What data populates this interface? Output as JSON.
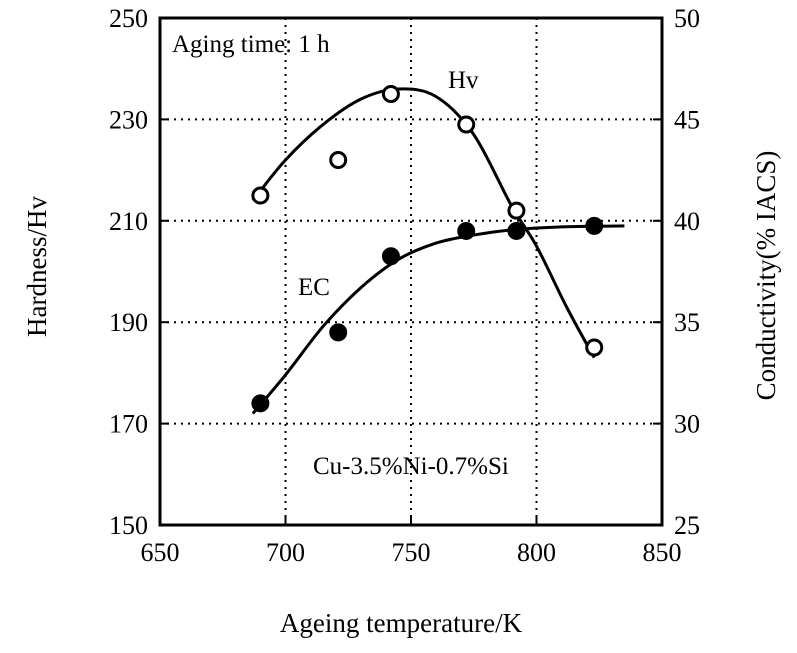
{
  "chart_data": {
    "type": "scatter",
    "xlabel": "Ageing temperature/K",
    "ylabel_left": "Hardness/Hv",
    "ylabel_right": "Conductivity(% IACS)",
    "xlim": [
      650,
      850
    ],
    "ylim_left": [
      150,
      250
    ],
    "ylim_right": [
      25,
      50
    ],
    "xticks": [
      650,
      700,
      750,
      800,
      850
    ],
    "yticks_left": [
      150,
      170,
      190,
      210,
      230,
      250
    ],
    "yticks_right": [
      25,
      30,
      35,
      40,
      45,
      50
    ],
    "grid": true,
    "grid_style": "dotted",
    "annotations": {
      "aging_time": "Aging time: 1 h",
      "alloy": "Cu-3.5%Ni-0.7%Si",
      "hv_label": "Hv",
      "ec_label": "EC"
    },
    "series": [
      {
        "name": "Hv",
        "axis": "left",
        "marker": "open-circle",
        "points": [
          {
            "x": 690,
            "y": 215
          },
          {
            "x": 721,
            "y": 222
          },
          {
            "x": 742,
            "y": 235
          },
          {
            "x": 772,
            "y": 229
          },
          {
            "x": 792,
            "y": 212
          },
          {
            "x": 823,
            "y": 185
          }
        ],
        "curve": [
          {
            "x": 687,
            "y": 214
          },
          {
            "x": 700,
            "y": 222
          },
          {
            "x": 715,
            "y": 229
          },
          {
            "x": 730,
            "y": 234
          },
          {
            "x": 745,
            "y": 236
          },
          {
            "x": 760,
            "y": 234.5
          },
          {
            "x": 775,
            "y": 227
          },
          {
            "x": 790,
            "y": 213
          },
          {
            "x": 800,
            "y": 205
          },
          {
            "x": 812,
            "y": 193
          },
          {
            "x": 823,
            "y": 183
          }
        ]
      },
      {
        "name": "EC",
        "axis": "right",
        "marker": "filled-circle",
        "points": [
          {
            "x": 690,
            "y": 31.0
          },
          {
            "x": 721,
            "y": 34.5
          },
          {
            "x": 742,
            "y": 38.25
          },
          {
            "x": 772,
            "y": 39.5
          },
          {
            "x": 792,
            "y": 39.5
          },
          {
            "x": 823,
            "y": 39.75
          }
        ],
        "curve": [
          {
            "x": 687,
            "y": 30.5
          },
          {
            "x": 700,
            "y": 32.4
          },
          {
            "x": 715,
            "y": 34.8
          },
          {
            "x": 730,
            "y": 36.7
          },
          {
            "x": 745,
            "y": 38.1
          },
          {
            "x": 760,
            "y": 38.9
          },
          {
            "x": 775,
            "y": 39.3
          },
          {
            "x": 790,
            "y": 39.55
          },
          {
            "x": 810,
            "y": 39.7
          },
          {
            "x": 835,
            "y": 39.75
          }
        ]
      }
    ]
  }
}
